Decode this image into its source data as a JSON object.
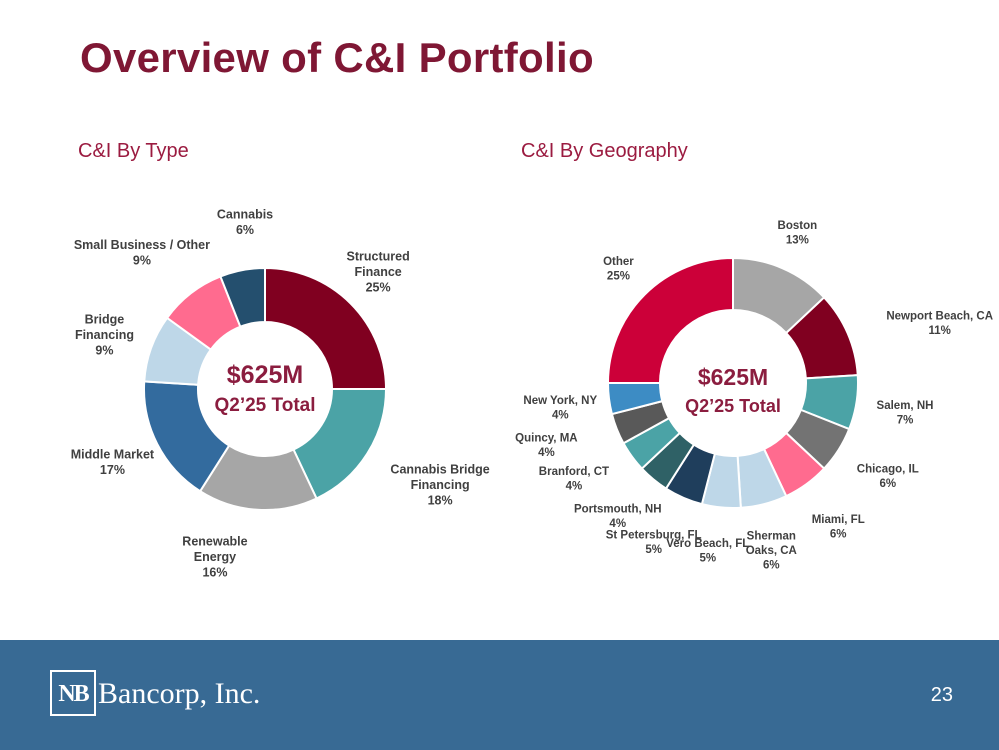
{
  "slide": {
    "title": "Overview of C&I Portfolio",
    "page_number": "23",
    "logo_mark": "NB",
    "logo_text": "Bancorp, Inc."
  },
  "chart_data": [
    {
      "type": "pie",
      "subtype": "donut",
      "title": "C&I By Type",
      "center_value": "$625M",
      "center_sub": "Q2’25 Total",
      "unit": "%",
      "slices": [
        {
          "label": [
            "Structured",
            "Finance"
          ],
          "value": 25,
          "color": "#800020"
        },
        {
          "label": [
            "Cannabis Bridge",
            "Financing"
          ],
          "value": 18,
          "color": "#4ba3a6"
        },
        {
          "label": [
            "Renewable",
            "Energy"
          ],
          "value": 16,
          "color": "#a6a6a6"
        },
        {
          "label": [
            "Middle Market"
          ],
          "value": 17,
          "color": "#336b9e"
        },
        {
          "label": [
            "Bridge",
            "Financing"
          ],
          "value": 9,
          "color": "#bed7e8"
        },
        {
          "label": [
            "Small Business / Other"
          ],
          "value": 9,
          "color": "#ff6b8f"
        },
        {
          "label": [
            "Cannabis"
          ],
          "value": 6,
          "color": "#244f6e"
        }
      ]
    },
    {
      "type": "pie",
      "subtype": "donut",
      "title": "C&I By Geography",
      "center_value": "$625M",
      "center_sub": "Q2’25 Total",
      "unit": "%",
      "slices": [
        {
          "label": [
            "Boston"
          ],
          "value": 13,
          "color": "#a6a6a6"
        },
        {
          "label": [
            "Newport Beach, CA"
          ],
          "value": 11,
          "color": "#800020"
        },
        {
          "label": [
            "Salem, NH"
          ],
          "value": 7,
          "color": "#4ba3a6"
        },
        {
          "label": [
            "Chicago, IL"
          ],
          "value": 6,
          "color": "#737373"
        },
        {
          "label": [
            "Miami, FL"
          ],
          "value": 6,
          "color": "#ff6b8f"
        },
        {
          "label": [
            "Sherman",
            "Oaks, CA"
          ],
          "value": 6,
          "color": "#bed7e8"
        },
        {
          "label": [
            "Vero Beach, FL"
          ],
          "value": 5,
          "color": "#bed7e8"
        },
        {
          "label": [
            "St Petersburg, FL"
          ],
          "value": 5,
          "color": "#1f3e5c"
        },
        {
          "label": [
            "Portsmouth, NH"
          ],
          "value": 4,
          "color": "#2f6166"
        },
        {
          "label": [
            "Branford, CT"
          ],
          "value": 4,
          "color": "#4ba3a6"
        },
        {
          "label": [
            "Quincy, MA"
          ],
          "value": 4,
          "color": "#595959"
        },
        {
          "label": [
            "New York, NY"
          ],
          "value": 4,
          "color": "#3d8cc4"
        },
        {
          "label": [
            "Other"
          ],
          "value": 25,
          "color": "#cc0039"
        }
      ]
    }
  ]
}
